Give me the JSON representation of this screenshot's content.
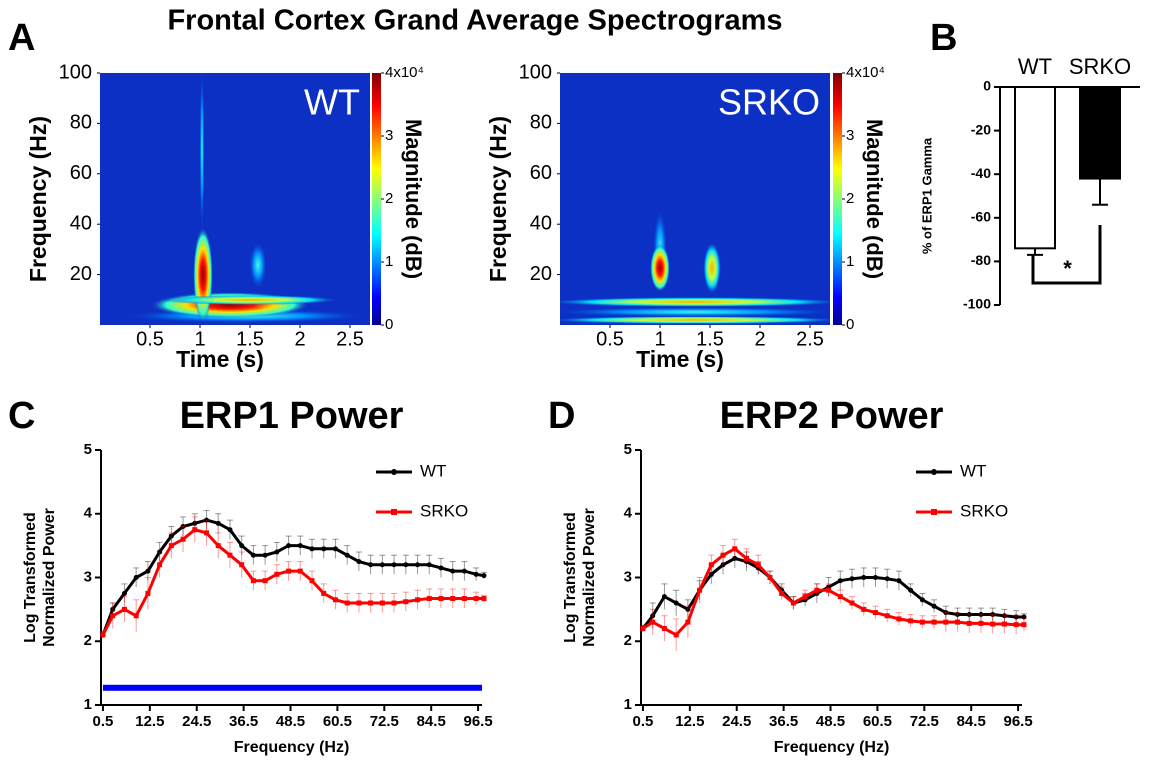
{
  "figure": {
    "title": "Frontal Cortex Grand Average Spectrograms",
    "panel_labels": [
      "A",
      "B",
      "C",
      "D"
    ]
  },
  "chart_data": [
    {
      "type": "heatmap",
      "annotation": "WT",
      "xlabel": "Time (s)",
      "ylabel": "Frequency (Hz)",
      "colormap": "jet",
      "xlim": [
        0,
        2.7
      ],
      "xticks": [
        0.5,
        1,
        1.5,
        2,
        2.5
      ],
      "ylim": [
        0,
        100
      ],
      "yticks": [
        20,
        40,
        60,
        80,
        100
      ],
      "colorbar_label": "Magnitude (dB)",
      "clim": [
        0,
        40000
      ],
      "cticks": [
        {
          "value": 0,
          "label": "0"
        },
        {
          "value": 10000,
          "label": "1"
        },
        {
          "value": 20000,
          "label": "2"
        },
        {
          "value": 30000,
          "label": "3"
        },
        {
          "value": 40000,
          "label": "4x10⁴"
        }
      ]
    },
    {
      "type": "heatmap",
      "annotation": "SRKO",
      "xlabel": "Time (s)",
      "ylabel": "Frequency (Hz)",
      "colormap": "jet",
      "xlim": [
        0,
        2.7
      ],
      "xticks": [
        0.5,
        1,
        1.5,
        2,
        2.5
      ],
      "ylim": [
        0,
        100
      ],
      "yticks": [
        20,
        40,
        60,
        80,
        100
      ],
      "colorbar_label": "Magnitude (dB)",
      "clim": [
        0,
        40000
      ],
      "cticks": [
        {
          "value": 0,
          "label": "0"
        },
        {
          "value": 10000,
          "label": "1"
        },
        {
          "value": 20000,
          "label": "2"
        },
        {
          "value": 30000,
          "label": "3"
        },
        {
          "value": 40000,
          "label": "4x10⁴"
        }
      ]
    },
    {
      "type": "bar",
      "ylabel": "% of ERP1 Gamma",
      "categories": [
        "WT",
        "SRKO"
      ],
      "values": [
        -74,
        -42
      ],
      "errors": [
        3,
        12
      ],
      "colors": [
        "#ffffff",
        "#000000"
      ],
      "ylim": [
        -100,
        0
      ],
      "yticks": [
        0,
        -20,
        -40,
        -60,
        -80,
        -100
      ],
      "significance": "*"
    },
    {
      "type": "line",
      "title": "ERP1 Power",
      "xlabel": "Frequency (Hz)",
      "ylabel": [
        "Log Transformed",
        "Normalized Power"
      ],
      "legend": "upper right",
      "x": [
        0.5,
        3,
        6,
        9,
        12,
        15,
        18,
        21,
        24,
        27,
        30,
        33,
        36,
        39,
        42,
        45,
        48,
        51,
        54,
        57,
        60,
        63,
        66,
        69,
        72,
        75,
        78,
        81,
        84,
        87,
        90,
        93,
        96,
        98
      ],
      "xlim": [
        0,
        97.5
      ],
      "xticks": [
        0.5,
        12.5,
        24.5,
        36.5,
        48.5,
        60.5,
        72.5,
        84.5,
        96.5
      ],
      "ylim": [
        1,
        5
      ],
      "yticks": [
        1,
        2,
        3,
        4,
        5
      ],
      "series": [
        {
          "name": "WT",
          "color": "#000000",
          "values": [
            2.1,
            2.5,
            2.75,
            3.0,
            3.1,
            3.4,
            3.65,
            3.8,
            3.85,
            3.9,
            3.85,
            3.75,
            3.5,
            3.35,
            3.35,
            3.4,
            3.5,
            3.5,
            3.45,
            3.45,
            3.45,
            3.35,
            3.25,
            3.2,
            3.2,
            3.2,
            3.2,
            3.2,
            3.2,
            3.15,
            3.1,
            3.1,
            3.05,
            3.03
          ],
          "errors": [
            0.05,
            0.1,
            0.15,
            0.15,
            0.15,
            0.15,
            0.15,
            0.15,
            0.15,
            0.15,
            0.15,
            0.15,
            0.15,
            0.15,
            0.15,
            0.15,
            0.15,
            0.15,
            0.15,
            0.15,
            0.15,
            0.15,
            0.15,
            0.15,
            0.15,
            0.15,
            0.15,
            0.15,
            0.15,
            0.15,
            0.15,
            0.15,
            0.1,
            0.05
          ]
        },
        {
          "name": "SRKO",
          "color": "#ff0000",
          "values": [
            2.1,
            2.4,
            2.5,
            2.4,
            2.75,
            3.2,
            3.5,
            3.6,
            3.75,
            3.7,
            3.5,
            3.35,
            3.2,
            2.95,
            2.95,
            3.05,
            3.1,
            3.1,
            2.95,
            2.75,
            2.65,
            2.6,
            2.6,
            2.6,
            2.6,
            2.6,
            2.62,
            2.65,
            2.67,
            2.67,
            2.67,
            2.67,
            2.67,
            2.67
          ],
          "errors": [
            0.05,
            0.2,
            0.2,
            0.25,
            0.25,
            0.2,
            0.2,
            0.2,
            0.2,
            0.2,
            0.2,
            0.2,
            0.2,
            0.15,
            0.15,
            0.15,
            0.15,
            0.15,
            0.15,
            0.15,
            0.15,
            0.15,
            0.15,
            0.15,
            0.15,
            0.15,
            0.15,
            0.15,
            0.15,
            0.15,
            0.15,
            0.15,
            0.1,
            0.05
          ]
        }
      ],
      "significance_bar": {
        "x": [
          0.5,
          97.5
        ],
        "y": 1.27,
        "color": "#0000ff"
      }
    },
    {
      "type": "line",
      "title": "ERP2 Power",
      "xlabel": "Frequency (Hz)",
      "ylabel": [
        "Log Transformed",
        "Normalized Power"
      ],
      "legend": "upper right",
      "x": [
        0.5,
        3,
        6,
        9,
        12,
        15,
        18,
        21,
        24,
        27,
        30,
        33,
        36,
        39,
        42,
        45,
        48,
        51,
        54,
        57,
        60,
        63,
        66,
        69,
        72,
        75,
        78,
        81,
        84,
        87,
        90,
        93,
        96,
        98
      ],
      "xlim": [
        0,
        97.5
      ],
      "xticks": [
        0.5,
        12.5,
        24.5,
        36.5,
        48.5,
        60.5,
        72.5,
        84.5,
        96.5
      ],
      "ylim": [
        1,
        5
      ],
      "yticks": [
        1,
        2,
        3,
        4,
        5
      ],
      "series": [
        {
          "name": "WT",
          "color": "#000000",
          "values": [
            2.2,
            2.4,
            2.7,
            2.6,
            2.5,
            2.8,
            3.05,
            3.2,
            3.3,
            3.25,
            3.15,
            3.0,
            2.8,
            2.6,
            2.65,
            2.75,
            2.85,
            2.95,
            2.98,
            3.0,
            3.0,
            2.98,
            2.95,
            2.8,
            2.65,
            2.55,
            2.45,
            2.42,
            2.42,
            2.42,
            2.42,
            2.4,
            2.38,
            2.38
          ],
          "errors": [
            0.05,
            0.2,
            0.2,
            0.2,
            0.15,
            0.15,
            0.15,
            0.15,
            0.15,
            0.15,
            0.1,
            0.1,
            0.1,
            0.1,
            0.1,
            0.15,
            0.15,
            0.15,
            0.15,
            0.15,
            0.15,
            0.15,
            0.15,
            0.1,
            0.1,
            0.1,
            0.1,
            0.1,
            0.1,
            0.1,
            0.1,
            0.1,
            0.1,
            0.05
          ]
        },
        {
          "name": "SRKO",
          "color": "#ff0000",
          "values": [
            2.2,
            2.3,
            2.2,
            2.1,
            2.3,
            2.8,
            3.2,
            3.35,
            3.45,
            3.3,
            3.2,
            3.0,
            2.75,
            2.6,
            2.7,
            2.8,
            2.8,
            2.7,
            2.6,
            2.5,
            2.45,
            2.4,
            2.35,
            2.32,
            2.3,
            2.3,
            2.3,
            2.3,
            2.28,
            2.28,
            2.27,
            2.27,
            2.26,
            2.26
          ],
          "errors": [
            0.05,
            0.2,
            0.2,
            0.25,
            0.25,
            0.2,
            0.15,
            0.15,
            0.15,
            0.15,
            0.15,
            0.1,
            0.1,
            0.1,
            0.1,
            0.1,
            0.1,
            0.1,
            0.1,
            0.1,
            0.1,
            0.1,
            0.1,
            0.1,
            0.1,
            0.1,
            0.15,
            0.15,
            0.15,
            0.15,
            0.15,
            0.15,
            0.15,
            0.1
          ]
        }
      ]
    }
  ]
}
